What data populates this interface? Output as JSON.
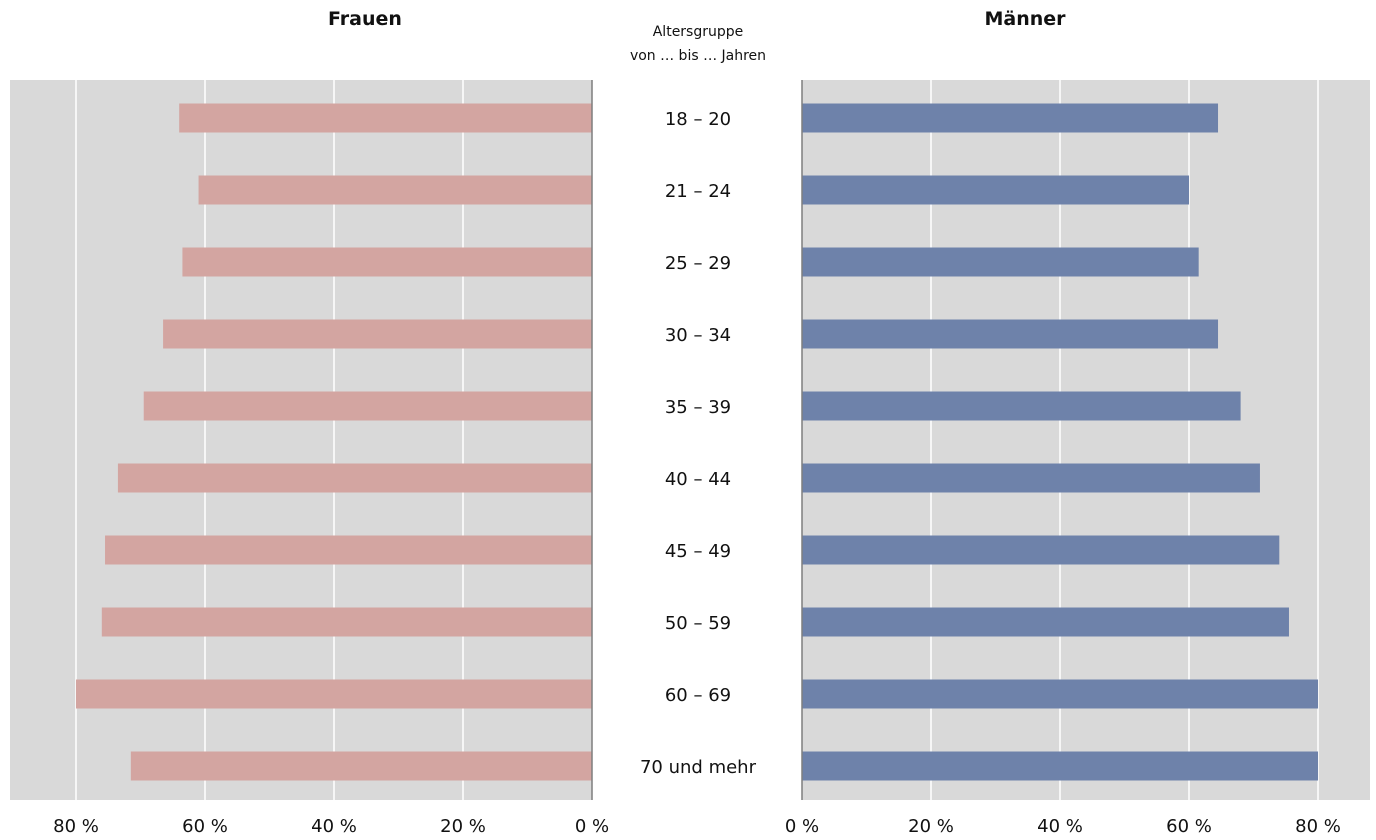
{
  "chart_data": {
    "type": "bar",
    "title_left": "Frauen",
    "title_right": "Männer",
    "center_header": [
      "Altersgruppe",
      "von … bis … Jahren"
    ],
    "categories": [
      "18 – 20",
      "21 – 24",
      "25 – 29",
      "30 – 34",
      "35 – 39",
      "40 – 44",
      "45 – 49",
      "50 – 59",
      "60 – 69",
      "70 und mehr"
    ],
    "series": [
      {
        "name": "Frauen",
        "values": [
          64,
          61,
          63.5,
          66.5,
          69.5,
          73.5,
          75.5,
          76,
          80,
          71.5
        ]
      },
      {
        "name": "Männer",
        "values": [
          64.5,
          60,
          61.5,
          64.5,
          68,
          71,
          74,
          75.5,
          80,
          80
        ]
      }
    ],
    "xlim": [
      0,
      80
    ],
    "tick_values": [
      0,
      20,
      40,
      60,
      80
    ],
    "tick_labels_left": [
      "0 %",
      "20 %",
      "40 %",
      "60 %",
      "80 %"
    ],
    "tick_labels_right": [
      "0 %",
      "20 %",
      "40 %",
      "60 %",
      "80 %"
    ],
    "grid": true,
    "colors": {
      "frauen": "#d3a5a1",
      "maenner": "#6e82aa",
      "panel": "#d9d9d9",
      "grid": "#ffffff",
      "axis": "#7f7f7f"
    }
  }
}
